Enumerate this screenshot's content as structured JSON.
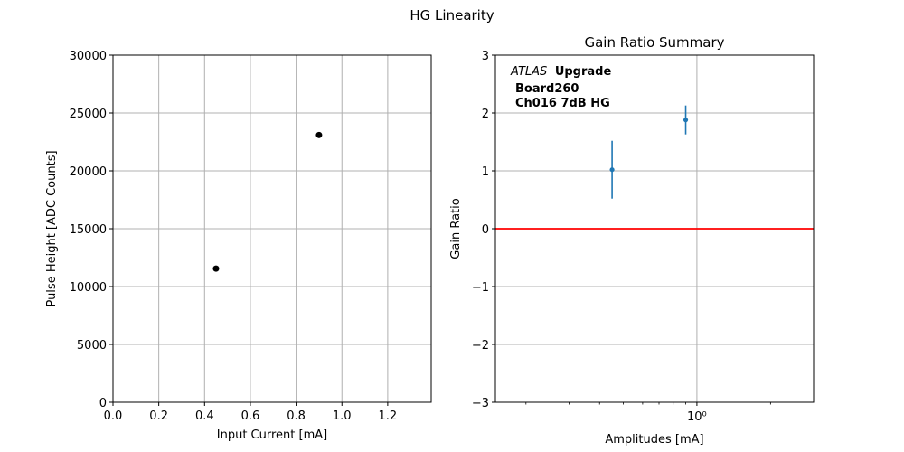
{
  "figure": {
    "title": "HG Linearity"
  },
  "chart_data": [
    {
      "type": "scatter",
      "title": "",
      "xlabel": "Input Current [mA]",
      "ylabel": "Pulse Height [ADC Counts]",
      "xlim": [
        0.0,
        1.39
      ],
      "ylim": [
        0,
        30000
      ],
      "xticks": [
        0.0,
        0.2,
        0.4,
        0.6,
        0.8,
        1.0,
        1.2
      ],
      "xtick_labels": [
        "0.0",
        "0.2",
        "0.4",
        "0.6",
        "0.8",
        "1.0",
        "1.2"
      ],
      "yticks": [
        0,
        5000,
        10000,
        15000,
        20000,
        25000,
        30000
      ],
      "ytick_labels": [
        "0",
        "5000",
        "10000",
        "15000",
        "20000",
        "25000",
        "30000"
      ],
      "grid": true,
      "marker_color": "#000000",
      "points": [
        {
          "x": 0.45,
          "y": 11550
        },
        {
          "x": 0.9,
          "y": 23100
        }
      ]
    },
    {
      "type": "scatter",
      "title": "Gain Ratio Summary",
      "xlabel": "Amplitudes [mA]",
      "ylabel": "Gain Ratio",
      "xscale": "log",
      "xlim": [
        0.15,
        3.0
      ],
      "ylim": [
        -3,
        3
      ],
      "xticks": [
        1.0
      ],
      "xtick_labels": [
        "10⁰"
      ],
      "yticks": [
        -3,
        -2,
        -1,
        0,
        1,
        2,
        3
      ],
      "ytick_labels": [
        "−3",
        "−2",
        "−1",
        "0",
        "1",
        "2",
        "3"
      ],
      "grid": true,
      "marker_color": "#1f77b4",
      "reference_line": {
        "y": 0,
        "color": "#ff0000"
      },
      "points": [
        {
          "x": 0.45,
          "y": 1.02,
          "yerr": 0.5
        },
        {
          "x": 0.9,
          "y": 1.88,
          "yerr": 0.25
        }
      ],
      "annotation": {
        "line1_italic": "ATLAS",
        "line1_bold": "Upgrade",
        "line2": "Board260",
        "line3": "Ch016 7dB HG"
      }
    }
  ]
}
